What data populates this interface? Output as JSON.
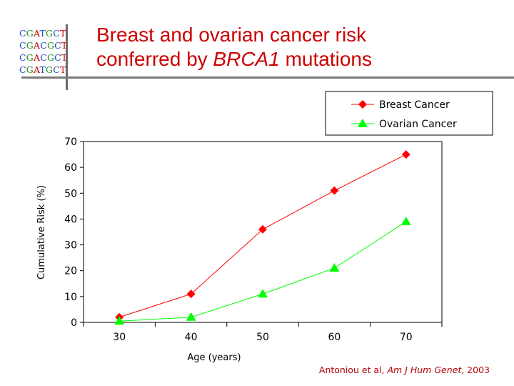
{
  "logo": {
    "rows": [
      [
        {
          "t": "C",
          "c": "#1d3fbf"
        },
        {
          "t": "G",
          "c": "#1a8f1a"
        },
        {
          "t": "A",
          "c": "#cc0000"
        },
        {
          "t": "T",
          "c": "#1d3fbf"
        },
        {
          "t": "G",
          "c": "#1a8f1a"
        },
        {
          "t": "C",
          "c": "#1d3fbf"
        },
        {
          "t": "T",
          "c": "#cc0000"
        }
      ],
      [
        {
          "t": "C",
          "c": "#1d3fbf"
        },
        {
          "t": "G",
          "c": "#1a8f1a"
        },
        {
          "t": "A",
          "c": "#cc0000"
        },
        {
          "t": "C",
          "c": "#1d3fbf"
        },
        {
          "t": "G",
          "c": "#1a8f1a"
        },
        {
          "t": "C",
          "c": "#1d3fbf"
        },
        {
          "t": "T",
          "c": "#cc0000"
        }
      ],
      [
        {
          "t": "C",
          "c": "#1d3fbf"
        },
        {
          "t": "G",
          "c": "#1a8f1a"
        },
        {
          "t": "A",
          "c": "#cc0000"
        },
        {
          "t": "C",
          "c": "#1d3fbf"
        },
        {
          "t": "G",
          "c": "#1a8f1a"
        },
        {
          "t": "C",
          "c": "#1d3fbf"
        },
        {
          "t": "T",
          "c": "#cc0000"
        }
      ],
      [
        {
          "t": "C",
          "c": "#1d3fbf"
        },
        {
          "t": "G",
          "c": "#1a8f1a"
        },
        {
          "t": "A",
          "c": "#cc0000"
        },
        {
          "t": "T",
          "c": "#1d3fbf"
        },
        {
          "t": "G",
          "c": "#1a8f1a"
        },
        {
          "t": "C",
          "c": "#1d3fbf"
        },
        {
          "t": "T",
          "c": "#cc0000"
        }
      ]
    ]
  },
  "slide": {
    "title_line1": "Breast and ovarian cancer risk",
    "title_line2_pre": "conferred by ",
    "title_line2_italic": "BRCA1",
    "title_line2_post": " mutations",
    "citation_pre": "Antoniou et al, ",
    "citation_journal": "Am J Hum Genet",
    "citation_post": ", 2003"
  },
  "chart_data": {
    "type": "line",
    "title": "Breast and ovarian cancer risk conferred by BRCA1 mutations",
    "xlabel": "Age (years)",
    "ylabel": "Cumulative Risk (%)",
    "categories": [
      "30",
      "40",
      "50",
      "60",
      "70"
    ],
    "ylim": [
      0,
      70
    ],
    "yticks": [
      "0",
      "10",
      "20",
      "30",
      "40",
      "50",
      "60",
      "70"
    ],
    "grid": false,
    "legend_position": "top-right",
    "series": [
      {
        "name": "Breast Cancer",
        "values": [
          2,
          11,
          36,
          51,
          65
        ],
        "color": "#ff0000",
        "marker": "diamond"
      },
      {
        "name": "Ovarian Cancer",
        "values": [
          0.5,
          2,
          11,
          21,
          39
        ],
        "color": "#00ff00",
        "marker": "triangle"
      }
    ]
  }
}
